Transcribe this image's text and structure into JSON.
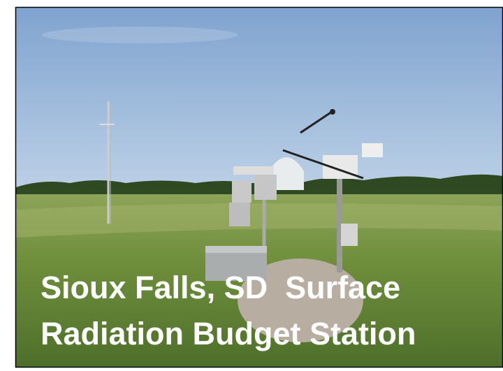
{
  "caption": {
    "line1": "Sioux Falls, SD  Surface",
    "line2": "Radiation Budget Station"
  }
}
